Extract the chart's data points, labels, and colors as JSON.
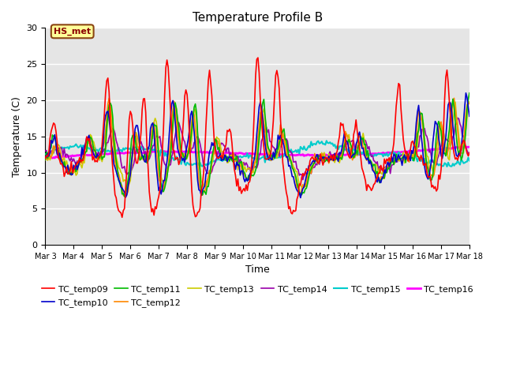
{
  "title": "Temperature Profile B",
  "xlabel": "Time",
  "ylabel": "Temperature (C)",
  "ylim": [
    0,
    30
  ],
  "background_color": "#e5e5e5",
  "annotation_text": "HS_met",
  "annotation_box_color": "#ffff99",
  "annotation_border_color": "#8b4513",
  "series_order": [
    "TC_temp09",
    "TC_temp10",
    "TC_temp11",
    "TC_temp12",
    "TC_temp13",
    "TC_temp14",
    "TC_temp15",
    "TC_temp16"
  ],
  "series_colors": {
    "TC_temp09": "#ff0000",
    "TC_temp10": "#0000cc",
    "TC_temp11": "#00bb00",
    "TC_temp12": "#ff8800",
    "TC_temp13": "#cccc00",
    "TC_temp14": "#9900aa",
    "TC_temp15": "#00cccc",
    "TC_temp16": "#ff00ff"
  },
  "series_lw": {
    "TC_temp09": 1.2,
    "TC_temp10": 1.2,
    "TC_temp11": 1.2,
    "TC_temp12": 1.2,
    "TC_temp13": 1.2,
    "TC_temp14": 1.2,
    "TC_temp15": 1.5,
    "TC_temp16": 2.0
  },
  "xtick_labels": [
    "Mar 3",
    "Mar 4",
    "Mar 5",
    "Mar 6",
    "Mar 7",
    "Mar 8",
    "Mar 9",
    "Mar 10",
    "Mar 11",
    "Mar 12",
    "Mar 13",
    "Mar 14",
    "Mar 15",
    "Mar 16",
    "Mar 17",
    "Mar 18"
  ],
  "ytick_labels": [
    "0",
    "5",
    "10",
    "15",
    "20",
    "25",
    "30"
  ],
  "grid_color": "#ffffff",
  "seed": 12345
}
